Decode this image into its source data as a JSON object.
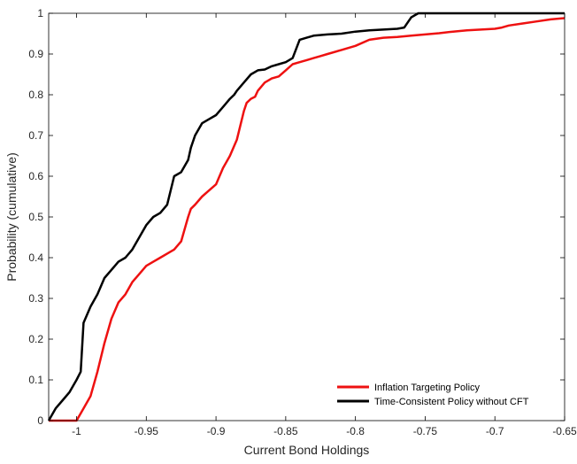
{
  "chart_data": {
    "type": "line",
    "title": "",
    "xlabel": "Current Bond Holdings",
    "ylabel": "Probability (cumulative)",
    "xlim": [
      -1.02,
      -0.65
    ],
    "ylim": [
      0,
      1
    ],
    "x_ticks": [
      -1,
      -0.95,
      -0.9,
      -0.85,
      -0.8,
      -0.75,
      -0.7,
      -0.65
    ],
    "x_tick_labels": [
      "-1",
      "-0.95",
      "-0.9",
      "-0.85",
      "-0.8",
      "-0.75",
      "-0.7",
      "-0.65"
    ],
    "y_ticks": [
      0,
      0.1,
      0.2,
      0.3,
      0.4,
      0.5,
      0.6,
      0.7,
      0.8,
      0.9,
      1
    ],
    "y_tick_labels": [
      "0",
      "0.1",
      "0.2",
      "0.3",
      "0.4",
      "0.5",
      "0.6",
      "0.7",
      "0.8",
      "0.9",
      "1"
    ],
    "grid": false,
    "legend_position": "bottom-right",
    "series": [
      {
        "name": "Inflation Targeting Policy",
        "color": "#ee1111",
        "x": [
          -1.02,
          -1.0,
          -0.995,
          -0.99,
          -0.985,
          -0.98,
          -0.975,
          -0.97,
          -0.965,
          -0.96,
          -0.955,
          -0.95,
          -0.945,
          -0.94,
          -0.935,
          -0.93,
          -0.925,
          -0.92,
          -0.918,
          -0.915,
          -0.91,
          -0.905,
          -0.9,
          -0.895,
          -0.89,
          -0.885,
          -0.88,
          -0.878,
          -0.875,
          -0.872,
          -0.87,
          -0.865,
          -0.86,
          -0.855,
          -0.85,
          -0.845,
          -0.84,
          -0.835,
          -0.83,
          -0.825,
          -0.82,
          -0.81,
          -0.8,
          -0.79,
          -0.78,
          -0.77,
          -0.76,
          -0.75,
          -0.74,
          -0.73,
          -0.72,
          -0.71,
          -0.7,
          -0.695,
          -0.69,
          -0.68,
          -0.67,
          -0.66,
          -0.65
        ],
        "y": [
          0.0,
          0.0,
          0.03,
          0.06,
          0.12,
          0.19,
          0.25,
          0.29,
          0.31,
          0.34,
          0.36,
          0.38,
          0.39,
          0.4,
          0.41,
          0.42,
          0.44,
          0.5,
          0.52,
          0.53,
          0.55,
          0.565,
          0.58,
          0.62,
          0.65,
          0.69,
          0.76,
          0.78,
          0.79,
          0.795,
          0.81,
          0.83,
          0.84,
          0.845,
          0.86,
          0.875,
          0.88,
          0.885,
          0.89,
          0.895,
          0.9,
          0.91,
          0.92,
          0.935,
          0.94,
          0.942,
          0.945,
          0.948,
          0.951,
          0.955,
          0.958,
          0.96,
          0.962,
          0.965,
          0.97,
          0.975,
          0.98,
          0.985,
          0.988
        ]
      },
      {
        "name": "Time-Consistent Policy without CFT",
        "color": "#000000",
        "x": [
          -1.02,
          -1.015,
          -1.01,
          -1.005,
          -1.0,
          -0.997,
          -0.995,
          -0.99,
          -0.985,
          -0.98,
          -0.975,
          -0.97,
          -0.965,
          -0.96,
          -0.955,
          -0.95,
          -0.945,
          -0.94,
          -0.935,
          -0.93,
          -0.925,
          -0.92,
          -0.918,
          -0.915,
          -0.91,
          -0.905,
          -0.9,
          -0.895,
          -0.89,
          -0.887,
          -0.885,
          -0.88,
          -0.875,
          -0.87,
          -0.865,
          -0.86,
          -0.855,
          -0.85,
          -0.845,
          -0.84,
          -0.835,
          -0.83,
          -0.82,
          -0.81,
          -0.8,
          -0.79,
          -0.78,
          -0.77,
          -0.765,
          -0.76,
          -0.755,
          -0.75,
          -0.74,
          -0.7,
          -0.65
        ],
        "y": [
          0.0,
          0.03,
          0.05,
          0.07,
          0.1,
          0.12,
          0.24,
          0.28,
          0.31,
          0.35,
          0.37,
          0.39,
          0.4,
          0.42,
          0.45,
          0.48,
          0.5,
          0.51,
          0.53,
          0.6,
          0.61,
          0.64,
          0.67,
          0.7,
          0.73,
          0.74,
          0.75,
          0.77,
          0.79,
          0.8,
          0.81,
          0.83,
          0.85,
          0.86,
          0.862,
          0.87,
          0.875,
          0.88,
          0.89,
          0.935,
          0.94,
          0.945,
          0.948,
          0.95,
          0.955,
          0.958,
          0.96,
          0.962,
          0.965,
          0.99,
          1.0,
          1.0,
          1.0,
          1.0,
          1.0
        ]
      }
    ]
  }
}
